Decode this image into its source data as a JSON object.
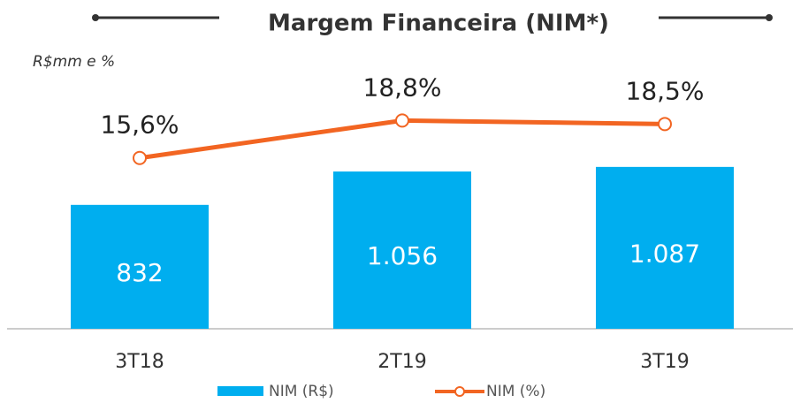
{
  "chart_data": {
    "type": "bar_line",
    "title": "Margem Financeira (NIM*)",
    "subtitle": "R$mm e %",
    "categories": [
      "3T18",
      "2T19",
      "3T19"
    ],
    "series": [
      {
        "name": "NIM (R$)",
        "type": "bar",
        "color": "#00aeef",
        "values": [
          832,
          1056,
          1087
        ],
        "value_labels": [
          "832",
          "1.056",
          "1.087"
        ]
      },
      {
        "name": "NIM (%)",
        "type": "line",
        "axis": "y2",
        "color": "#f26522",
        "values": [
          15.6,
          18.8,
          18.5
        ],
        "value_labels": [
          "15,6%",
          "18,8%",
          "18,5%"
        ]
      }
    ],
    "ylim": [
      0,
      1650
    ],
    "y2lim": [
      1,
      22
    ],
    "legend": "bottom"
  }
}
